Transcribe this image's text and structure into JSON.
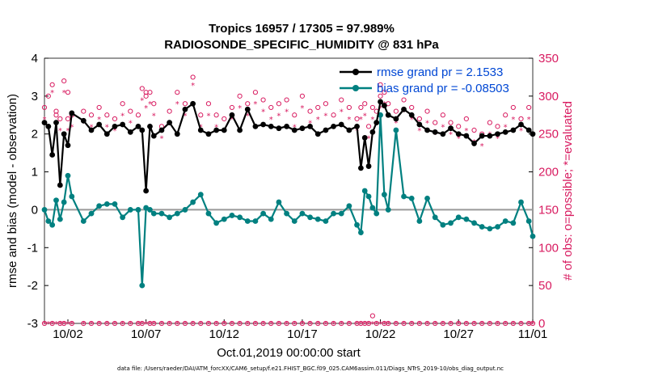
{
  "chart_data": {
    "type": "line",
    "title_line1": "Tropics 16957 / 17305 = 97.989%",
    "title_line2": "RADIOSONDE_SPECIFIC_HUMIDITY @ 831 hPa",
    "xlabel": "Oct.01,2019 00:00:00 start",
    "ylabel_left": "rmse and bias (model - observation)",
    "ylabel_right": "# of obs: o=possible; *=evaluated",
    "footer": "data file: /Users/raeder/DAI/ATM_forcXX/CAM6_setup/f.e21.FHIST_BGC.f09_025.CAM6assim.011/Diags_NTrS_2019-10/obs_diag_output.nc",
    "xlim": [
      0.5,
      31.75
    ],
    "ylim_left": [
      -3,
      4
    ],
    "ylim_right": [
      0,
      350
    ],
    "x_tick_values": [
      2,
      7,
      12,
      17,
      22,
      27,
      32
    ],
    "x_tick_labels": [
      "10/02",
      "10/07",
      "10/12",
      "10/17",
      "10/22",
      "10/27",
      "11/01"
    ],
    "y_left_ticks": [
      -3,
      -2,
      -1,
      0,
      1,
      2,
      3,
      4
    ],
    "y_right_ticks": [
      0,
      50,
      100,
      150,
      200,
      250,
      300,
      350
    ],
    "colors": {
      "rmse": "#000000",
      "bias": "#008080",
      "obs": "#d81b60",
      "legend_text": "#0047d4",
      "zero_line": "#999999"
    },
    "legend": [
      {
        "name": "rmse grand pr = 2.1533",
        "series": "rmse"
      },
      {
        "name": "bias grand pr = -0.08503",
        "series": "bias"
      }
    ],
    "x": [
      0.5,
      0.75,
      1.0,
      1.25,
      1.5,
      1.75,
      2.0,
      2.25,
      3,
      3.5,
      4,
      4.5,
      5,
      5.5,
      6,
      6.5,
      6.75,
      7,
      7.25,
      7.5,
      8,
      8.5,
      9,
      9.5,
      10,
      10.5,
      11,
      11.5,
      12,
      12.5,
      13,
      13.5,
      14,
      14.5,
      15,
      15.5,
      16,
      16.5,
      17,
      17.5,
      18,
      18.5,
      19,
      19.5,
      20,
      20.5,
      20.75,
      21,
      21.25,
      21.5,
      21.75,
      22,
      22.25,
      22.5,
      23,
      23.5,
      24,
      24.5,
      25,
      25.5,
      26,
      26.5,
      27,
      27.5,
      28,
      28.5,
      29,
      29.5,
      30,
      30.5,
      31,
      31.5,
      31.75
    ],
    "series": [
      {
        "name": "rmse",
        "values": [
          2.3,
          2.2,
          1.45,
          2.3,
          0.65,
          2.0,
          1.7,
          2.55,
          2.35,
          2.1,
          2.25,
          2.0,
          2.2,
          2.25,
          2.05,
          2.2,
          2.1,
          0.5,
          2.2,
          1.95,
          2.1,
          2.3,
          2.0,
          2.65,
          2.8,
          2.1,
          2.0,
          2.1,
          2.1,
          2.5,
          2.1,
          2.65,
          2.2,
          2.25,
          2.2,
          2.15,
          2.2,
          2.1,
          2.15,
          2.2,
          2.0,
          2.1,
          2.2,
          2.25,
          2.1,
          2.2,
          1.1,
          1.9,
          1.15,
          2.05,
          2.3,
          2.85,
          2.75,
          2.5,
          2.4,
          2.65,
          2.5,
          2.25,
          2.1,
          2.05,
          2.0,
          2.15,
          2.0,
          1.95,
          1.75,
          1.95,
          1.95,
          2.0,
          2.05,
          2.1,
          2.25,
          2.1,
          2.0
        ]
      },
      {
        "name": "bias",
        "values": [
          0.0,
          -0.3,
          -0.4,
          0.25,
          -0.25,
          0.2,
          0.9,
          0.35,
          -0.3,
          -0.1,
          0.1,
          0.15,
          0.15,
          -0.2,
          0.0,
          0.0,
          -2.0,
          0.05,
          0.0,
          -0.1,
          -0.1,
          -0.2,
          -0.1,
          0.0,
          0.2,
          0.4,
          -0.1,
          -0.35,
          -0.25,
          -0.15,
          -0.2,
          -0.3,
          -0.3,
          -0.1,
          -0.25,
          0.2,
          -0.1,
          -0.3,
          -0.1,
          -0.2,
          -0.25,
          -0.3,
          -0.1,
          -0.1,
          0.1,
          -0.4,
          -0.6,
          0.5,
          0.35,
          0.05,
          -0.1,
          2.5,
          0.4,
          0.0,
          2.1,
          0.35,
          0.3,
          -0.3,
          0.3,
          -0.2,
          -0.4,
          -0.35,
          -0.2,
          -0.25,
          -0.35,
          -0.45,
          -0.5,
          -0.45,
          -0.3,
          -0.35,
          0.2,
          -0.3,
          -0.7
        ]
      },
      {
        "name": "obs_possible",
        "values": [
          0,
          300,
          0,
          275,
          0,
          0,
          305,
          0,
          0,
          0,
          0,
          0,
          0,
          0,
          0,
          0,
          0,
          305,
          0,
          0,
          0,
          0,
          0,
          0,
          0,
          0,
          0,
          0,
          0,
          0,
          0,
          0,
          0,
          0,
          0,
          0,
          0,
          0,
          0,
          0,
          0,
          0,
          0,
          0,
          0,
          0,
          0,
          0,
          0,
          10,
          0,
          315,
          0,
          0,
          0,
          0,
          0,
          0,
          0,
          0,
          0,
          0,
          0,
          0,
          0,
          0,
          0,
          0,
          0,
          0,
          0,
          0,
          0
        ]
      },
      {
        "name": "obs_evaluated",
        "values": [
          0,
          0,
          0,
          0,
          0,
          0,
          0,
          0,
          0,
          0,
          0,
          0,
          0,
          0,
          0,
          0,
          0,
          0,
          0,
          0,
          0,
          0,
          0,
          0,
          0,
          0,
          0,
          0,
          0,
          0,
          0,
          0,
          0,
          0,
          0,
          0,
          0,
          0,
          0,
          0,
          0,
          0,
          0,
          0,
          0,
          0,
          0,
          0,
          0,
          0,
          0,
          0,
          0,
          0,
          0,
          0,
          0,
          0,
          0,
          0,
          0,
          0,
          0,
          0,
          0,
          0,
          0,
          0,
          0,
          0,
          0,
          0,
          0
        ]
      }
    ],
    "obs_upper": {
      "x": [
        0.5,
        1.0,
        1.25,
        1.5,
        1.75,
        2.0,
        2.25,
        3,
        3.5,
        4,
        4.5,
        5,
        5.5,
        6,
        6.5,
        6.75,
        7,
        7.25,
        7.5,
        8,
        8.5,
        9,
        9.5,
        10,
        10.5,
        11,
        11.5,
        12,
        12.5,
        13,
        13.5,
        14,
        14.5,
        15,
        15.5,
        16,
        16.5,
        17,
        17.5,
        18,
        18.5,
        19,
        19.5,
        20,
        20.5,
        20.75,
        21,
        21.25,
        21.5,
        21.75,
        22,
        22.25,
        22.5,
        23,
        23.5,
        24,
        24.5,
        25,
        25.5,
        26,
        26.5,
        27,
        27.5,
        28,
        28.5,
        29,
        29.5,
        30,
        30.5,
        31,
        31.5
      ],
      "possible": [
        285,
        315,
        280,
        270,
        320,
        270,
        275,
        280,
        275,
        285,
        275,
        270,
        290,
        280,
        275,
        310,
        300,
        305,
        290,
        260,
        280,
        305,
        290,
        325,
        275,
        290,
        275,
        270,
        285,
        300,
        290,
        305,
        295,
        285,
        290,
        295,
        275,
        300,
        280,
        285,
        290,
        275,
        295,
        285,
        270,
        285,
        290,
        260,
        285,
        280,
        300,
        305,
        290,
        280,
        295,
        285,
        270,
        280,
        265,
        275,
        265,
        260,
        270,
        255,
        250,
        265,
        260,
        275,
        285,
        270,
        285
      ],
      "evaluated": [
        270,
        305,
        265,
        255,
        305,
        255,
        260,
        265,
        260,
        270,
        260,
        255,
        275,
        265,
        260,
        295,
        285,
        290,
        275,
        245,
        265,
        290,
        275,
        315,
        260,
        275,
        260,
        255,
        270,
        285,
        275,
        290,
        280,
        270,
        275,
        280,
        260,
        285,
        265,
        270,
        275,
        260,
        280,
        270,
        255,
        270,
        275,
        245,
        270,
        265,
        285,
        290,
        275,
        265,
        280,
        270,
        255,
        265,
        250,
        260,
        250,
        245,
        255,
        240,
        235,
        250,
        245,
        260,
        270,
        255,
        270
      ]
    }
  }
}
